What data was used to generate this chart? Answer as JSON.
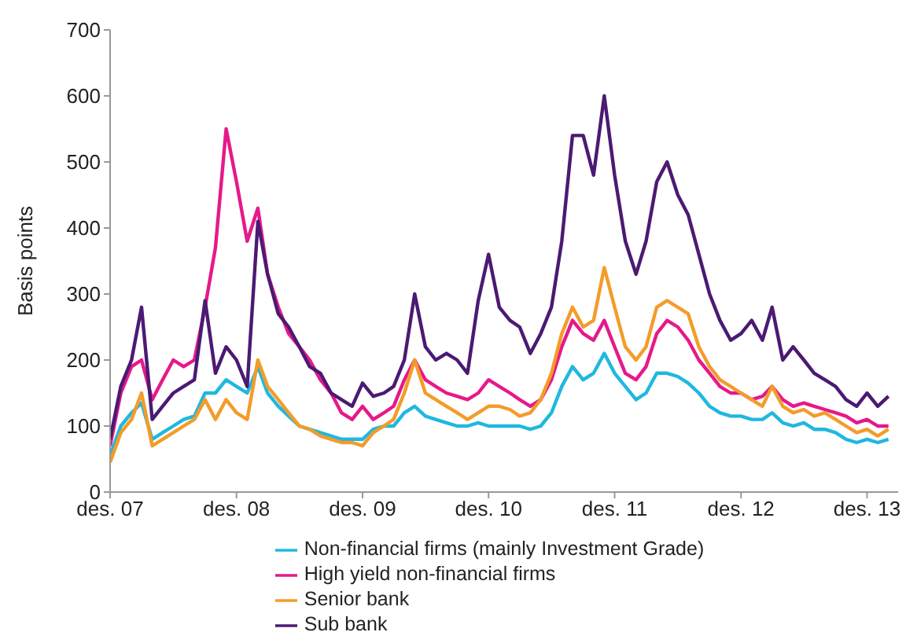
{
  "chart_data": {
    "type": "line",
    "ylabel": "Basis points",
    "x": [
      "2007-12",
      "2008-01",
      "2008-02",
      "2008-03",
      "2008-04",
      "2008-05",
      "2008-06",
      "2008-07",
      "2008-08",
      "2008-09",
      "2008-10",
      "2008-11",
      "2008-12",
      "2009-01",
      "2009-02",
      "2009-03",
      "2009-04",
      "2009-05",
      "2009-06",
      "2009-07",
      "2009-08",
      "2009-09",
      "2009-10",
      "2009-11",
      "2009-12",
      "2010-01",
      "2010-02",
      "2010-03",
      "2010-04",
      "2010-05",
      "2010-06",
      "2010-07",
      "2010-08",
      "2010-09",
      "2010-10",
      "2010-11",
      "2010-12",
      "2011-01",
      "2011-02",
      "2011-03",
      "2011-04",
      "2011-05",
      "2011-06",
      "2011-07",
      "2011-08",
      "2011-09",
      "2011-10",
      "2011-11",
      "2011-12",
      "2012-01",
      "2012-02",
      "2012-03",
      "2012-04",
      "2012-05",
      "2012-06",
      "2012-07",
      "2012-08",
      "2012-09",
      "2012-10",
      "2012-11",
      "2012-12",
      "2013-01",
      "2013-02",
      "2013-03",
      "2013-04",
      "2013-05",
      "2013-06",
      "2013-07",
      "2013-08",
      "2013-09",
      "2013-10",
      "2013-11",
      "2013-12",
      "2014-01",
      "2014-02"
    ],
    "series": [
      {
        "name": "Non-financial firms (mainly Investment Grade)",
        "color": "#1fb8e0",
        "values": [
          55,
          100,
          120,
          135,
          80,
          90,
          100,
          110,
          115,
          150,
          150,
          170,
          160,
          150,
          190,
          150,
          130,
          115,
          100,
          95,
          90,
          85,
          80,
          80,
          80,
          95,
          100,
          100,
          120,
          130,
          115,
          110,
          105,
          100,
          100,
          105,
          100,
          100,
          100,
          100,
          95,
          100,
          120,
          160,
          190,
          170,
          180,
          210,
          180,
          160,
          140,
          150,
          180,
          180,
          175,
          165,
          150,
          130,
          120,
          115,
          115,
          110,
          110,
          120,
          105,
          100,
          105,
          95,
          95,
          90,
          80,
          75,
          80,
          75,
          80
        ]
      },
      {
        "name": "High yield non-financial firms",
        "color": "#e6198a",
        "values": [
          70,
          150,
          190,
          200,
          140,
          170,
          200,
          190,
          200,
          280,
          370,
          550,
          470,
          380,
          430,
          330,
          280,
          240,
          220,
          200,
          170,
          150,
          120,
          110,
          130,
          110,
          120,
          130,
          170,
          200,
          170,
          160,
          150,
          145,
          140,
          150,
          170,
          160,
          150,
          140,
          130,
          140,
          170,
          220,
          260,
          240,
          230,
          260,
          220,
          180,
          170,
          190,
          240,
          260,
          250,
          230,
          200,
          180,
          160,
          150,
          150,
          140,
          145,
          160,
          140,
          130,
          135,
          130,
          125,
          120,
          115,
          105,
          110,
          100,
          100
        ]
      },
      {
        "name": "Senior bank",
        "color": "#f39c2a",
        "values": [
          45,
          90,
          110,
          150,
          70,
          80,
          90,
          100,
          110,
          140,
          110,
          140,
          120,
          110,
          200,
          160,
          140,
          120,
          100,
          95,
          85,
          80,
          75,
          75,
          70,
          90,
          100,
          110,
          150,
          200,
          150,
          140,
          130,
          120,
          110,
          120,
          130,
          130,
          125,
          115,
          120,
          140,
          180,
          240,
          280,
          250,
          260,
          340,
          280,
          220,
          200,
          220,
          280,
          290,
          280,
          270,
          220,
          190,
          170,
          160,
          150,
          140,
          130,
          160,
          130,
          120,
          125,
          115,
          120,
          110,
          100,
          90,
          95,
          85,
          95
        ]
      },
      {
        "name": "Sub bank",
        "color": "#4b1a73",
        "values": [
          80,
          160,
          200,
          280,
          110,
          130,
          150,
          160,
          170,
          290,
          180,
          220,
          200,
          160,
          410,
          330,
          270,
          250,
          220,
          190,
          180,
          150,
          140,
          130,
          165,
          145,
          150,
          160,
          200,
          300,
          220,
          200,
          210,
          200,
          180,
          290,
          360,
          280,
          260,
          250,
          210,
          240,
          280,
          380,
          540,
          540,
          480,
          600,
          480,
          380,
          330,
          380,
          470,
          500,
          450,
          420,
          360,
          300,
          260,
          230,
          240,
          260,
          230,
          280,
          200,
          220,
          200,
          180,
          170,
          160,
          140,
          130,
          150,
          130,
          145
        ]
      }
    ],
    "xlim": [
      "2007-12",
      "2014-03"
    ],
    "xticks": [
      {
        "value": "2007-12",
        "label": "des. 07"
      },
      {
        "value": "2008-12",
        "label": "des. 08"
      },
      {
        "value": "2009-12",
        "label": "des. 09"
      },
      {
        "value": "2010-12",
        "label": "des. 10"
      },
      {
        "value": "2011-12",
        "label": "des. 11"
      },
      {
        "value": "2012-12",
        "label": "des. 12"
      },
      {
        "value": "2013-12",
        "label": "des. 13"
      }
    ],
    "ylim": [
      0,
      700
    ],
    "yticks": [
      0,
      100,
      200,
      300,
      400,
      500,
      600,
      700
    ],
    "grid": false,
    "legend": "bottom",
    "marker": "none",
    "line_style": "solid"
  }
}
